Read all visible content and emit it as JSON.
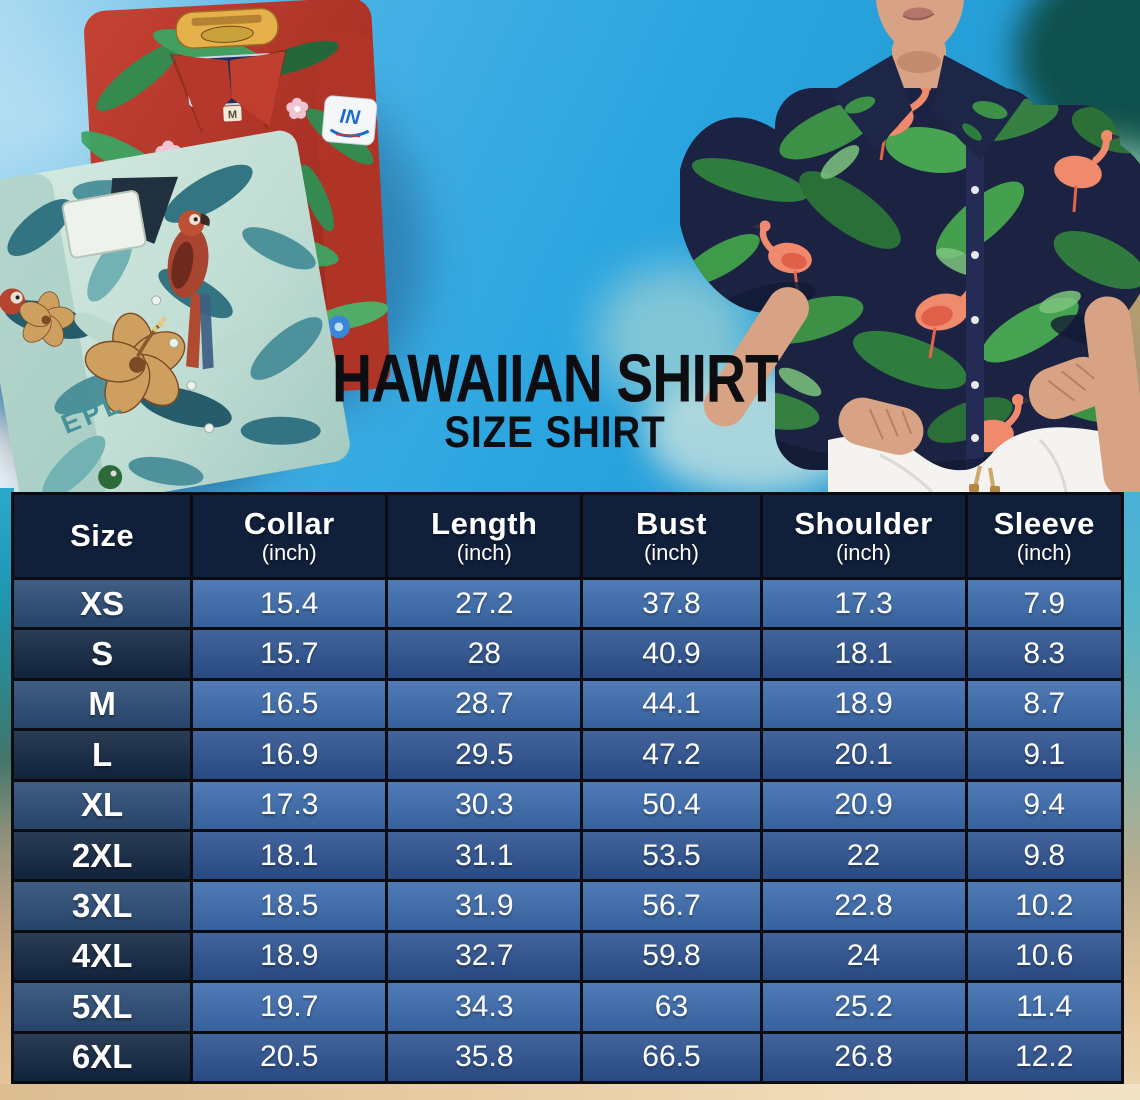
{
  "title": {
    "main": "HAWAIIAN SHIRT",
    "subtitle": "SIZE SHIRT"
  },
  "chart_data": {
    "type": "table",
    "title": "Hawaiian Shirt Size Shirt",
    "columns": [
      {
        "label": "Size",
        "sub": ""
      },
      {
        "label": "Collar",
        "sub": "(inch)"
      },
      {
        "label": "Length",
        "sub": "(inch)"
      },
      {
        "label": "Bust",
        "sub": "(inch)"
      },
      {
        "label": "Shoulder",
        "sub": "(inch)"
      },
      {
        "label": "Sleeve",
        "sub": "(inch)"
      }
    ],
    "rows": [
      {
        "size": "XS",
        "values": [
          "15.4",
          "27.2",
          "37.8",
          "17.3",
          "7.9"
        ]
      },
      {
        "size": "S",
        "values": [
          "15.7",
          "28",
          "40.9",
          "18.1",
          "8.3"
        ]
      },
      {
        "size": "M",
        "values": [
          "16.5",
          "28.7",
          "44.1",
          "18.9",
          "8.7"
        ]
      },
      {
        "size": "L",
        "values": [
          "16.9",
          "29.5",
          "47.2",
          "20.1",
          "9.1"
        ]
      },
      {
        "size": "XL",
        "values": [
          "17.3",
          "30.3",
          "50.4",
          "20.9",
          "9.4"
        ]
      },
      {
        "size": "2XL",
        "values": [
          "18.1",
          "31.1",
          "53.5",
          "22",
          "9.8"
        ]
      },
      {
        "size": "3XL",
        "values": [
          "18.5",
          "31.9",
          "56.7",
          "22.8",
          "10.2"
        ]
      },
      {
        "size": "4XL",
        "values": [
          "18.9",
          "32.7",
          "59.8",
          "24",
          "10.6"
        ]
      },
      {
        "size": "5XL",
        "values": [
          "19.7",
          "34.3",
          "63",
          "25.2",
          "11.4"
        ]
      },
      {
        "size": "6XL",
        "values": [
          "20.5",
          "35.8",
          "66.5",
          "26.8",
          "12.2"
        ]
      }
    ]
  },
  "shirt_prints": {
    "red_shirt_patch": "IN",
    "red_shirt_size_tag": "M",
    "teal_shirt_text": "EPL"
  },
  "colors": {
    "header_bg": "#101f3a",
    "size_col_light": "#2b4b75",
    "size_col_dark": "#132742",
    "cell_light": "#3d6cae",
    "cell_dark": "#2d5290",
    "border": "#0b0c12",
    "table_text": "#ffffff",
    "title_text": "#0d0d12",
    "sky_blue": "#2aa3de",
    "sand": "#e9cda4",
    "shirt_navy": "#1c2342",
    "leaf_green": "#3c9147",
    "flamingo_coral": "#f08a6d"
  }
}
